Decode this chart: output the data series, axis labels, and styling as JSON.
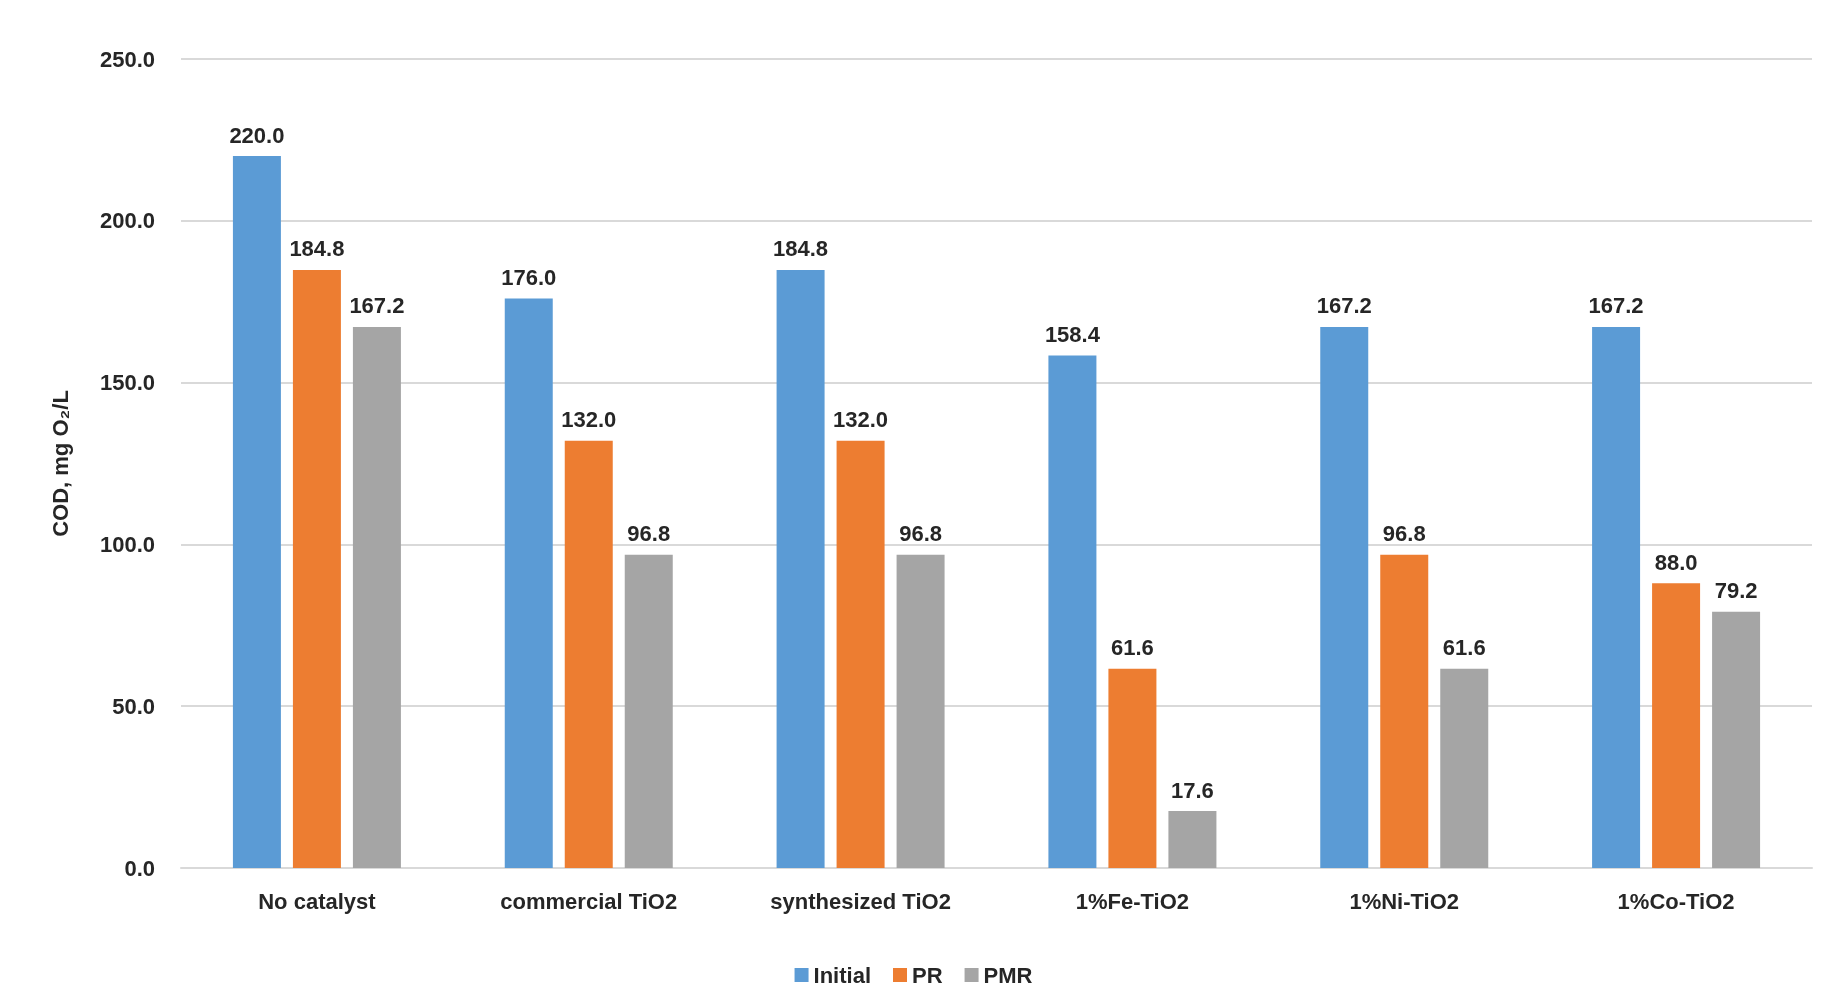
{
  "chart_data": {
    "type": "bar",
    "ylabel": "COD, mg O₂/L",
    "categories": [
      "No catalyst",
      "commercial TiO2",
      "synthesized TiO2",
      "1%Fe-TiO2",
      "1%Ni-TiO2",
      "1%Co-TiO2"
    ],
    "series": [
      {
        "name": "Initial",
        "color": "#5b9bd5",
        "values": [
          220.0,
          176.0,
          184.8,
          158.4,
          167.2,
          167.2
        ],
        "value_labels": [
          "220.0",
          "176.0",
          "184.8",
          "158.4",
          "167.2",
          "167.2"
        ]
      },
      {
        "name": "PR",
        "color": "#ed7d31",
        "values": [
          184.8,
          132.0,
          132.0,
          61.6,
          96.8,
          88.0
        ],
        "value_labels": [
          "184.8",
          "132.0",
          "132.0",
          "61.6",
          "96.8",
          "88.0"
        ]
      },
      {
        "name": "PMR",
        "color": "#a5a5a5",
        "values": [
          167.2,
          96.8,
          96.8,
          17.6,
          61.6,
          79.2
        ],
        "value_labels": [
          "167.2",
          "96.8",
          "96.8",
          "17.6",
          "61.6",
          "79.2"
        ]
      }
    ],
    "ylim": [
      0,
      250
    ],
    "yticks": [
      {
        "value": 0,
        "label": "0.0"
      },
      {
        "value": 50,
        "label": "50.0"
      },
      {
        "value": 100,
        "label": "100.0"
      },
      {
        "value": 150,
        "label": "150.0"
      },
      {
        "value": 200,
        "label": "200.0"
      },
      {
        "value": 250,
        "label": "250.0"
      }
    ],
    "grid": "y",
    "legend": "bottom"
  }
}
